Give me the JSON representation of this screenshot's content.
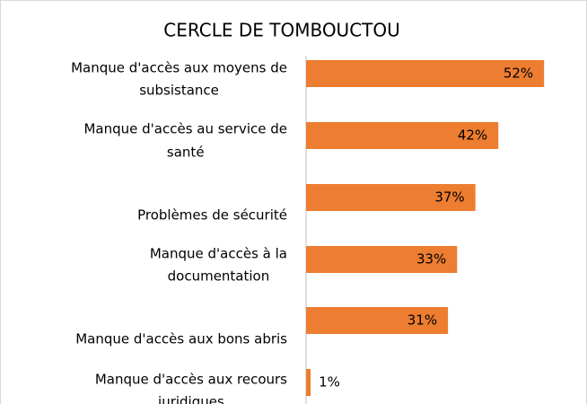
{
  "chart_data": {
    "type": "bar",
    "orientation": "horizontal",
    "title": "CERCLE DE TOMBOUCTOU",
    "categories": [
      [
        "Manque d'accès aux moyens de",
        "subsistance"
      ],
      [
        "Manque d'accès au service de",
        "santé"
      ],
      [
        "Problèmes de sécurité"
      ],
      [
        "Manque d'accès à la",
        "documentation"
      ],
      [
        "Manque d'accès aux bons abris"
      ],
      [
        "Manque d'accès aux recours",
        "juridiques"
      ]
    ],
    "values": [
      52,
      42,
      37,
      33,
      31,
      1
    ],
    "value_labels": [
      "52%",
      "42%",
      "37%",
      "33%",
      "31%",
      "1%"
    ],
    "color": "#ed7d31"
  }
}
